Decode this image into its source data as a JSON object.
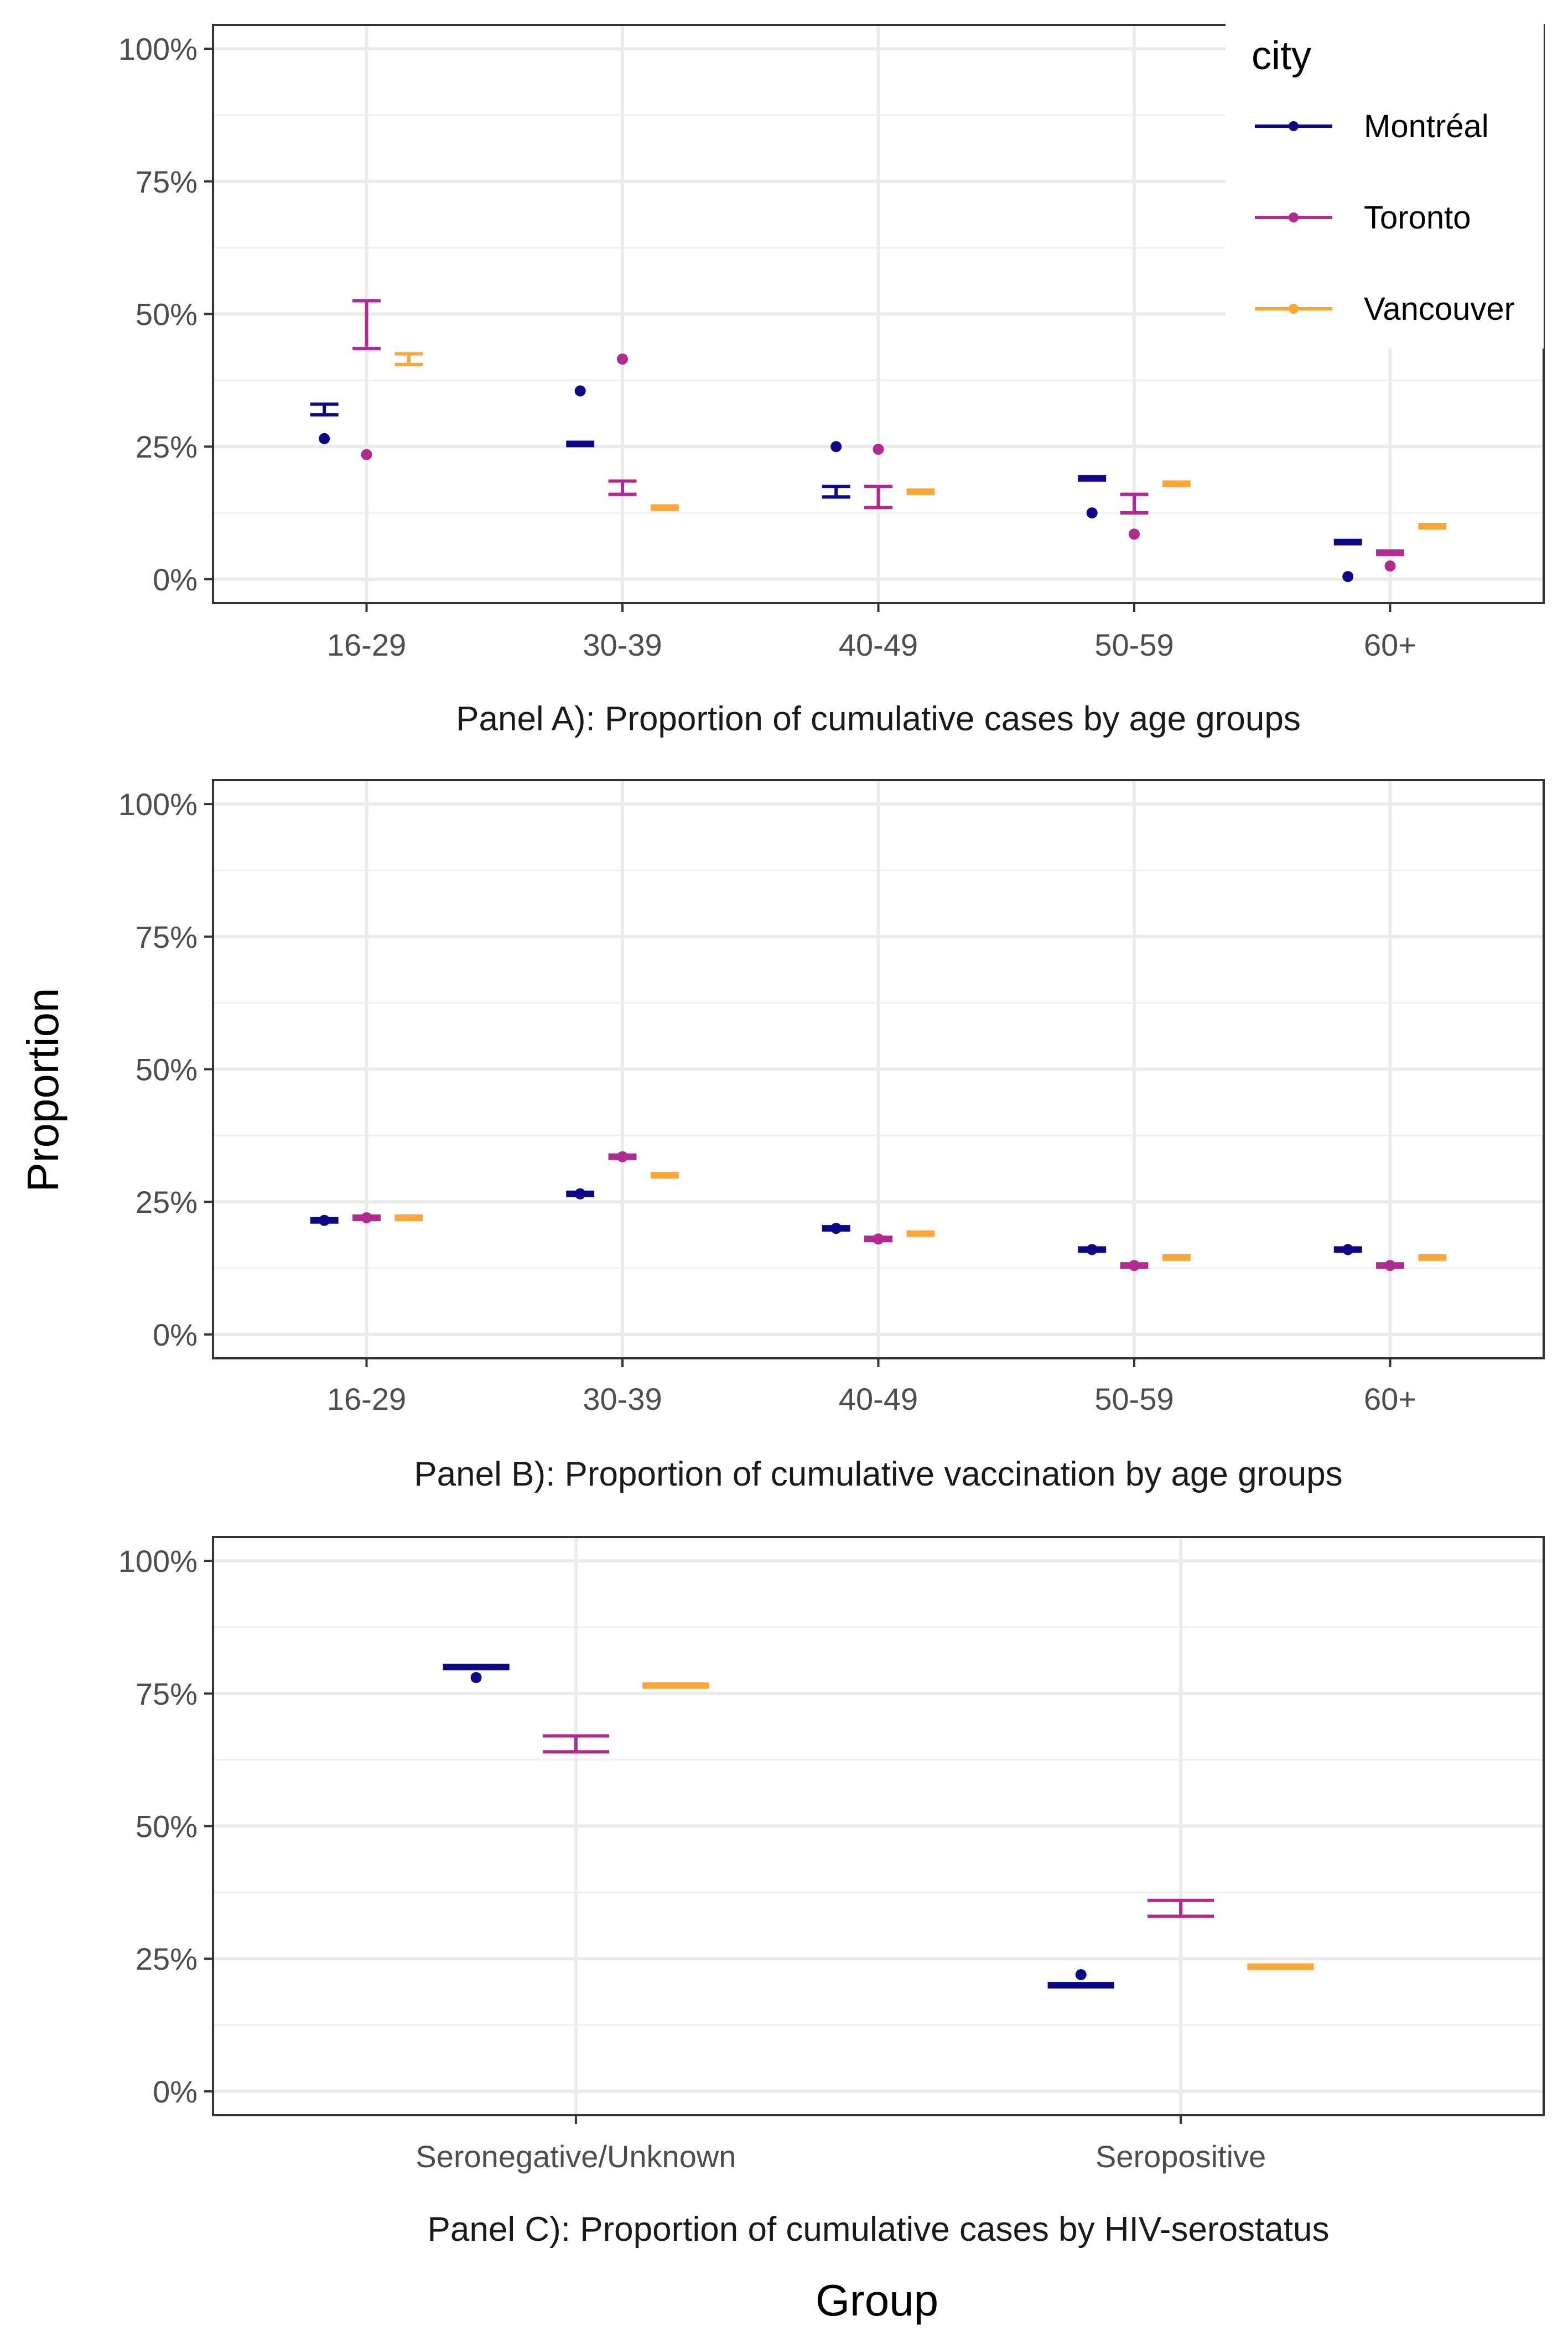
{
  "y_axis_title": "Proportion",
  "x_axis_title": "Group",
  "legend": {
    "title": "city",
    "entries": [
      "Montréal",
      "Toronto",
      "Vancouver"
    ]
  },
  "colors": {
    "Montréal": "#0d0887",
    "Toronto": "#b12a90",
    "Vancouver": "#fca636"
  },
  "chart_data": [
    {
      "type": "scatter",
      "caption": "Panel A): Proportion of cumulative cases by age groups",
      "categories": [
        "16-29",
        "30-39",
        "40-49",
        "50-59",
        "60+"
      ],
      "y_ticks": [
        "0%",
        "25%",
        "50%",
        "75%",
        "100%"
      ],
      "ylim": [
        0,
        1
      ],
      "series": [
        {
          "name": "Montréal",
          "observed": [
            0.265,
            0.355,
            0.25,
            0.125,
            0.005
          ],
          "estimate": [
            0.32,
            0.255,
            0.165,
            0.19,
            0.07
          ],
          "lower": [
            0.31,
            0.25,
            0.155,
            0.185,
            0.065
          ],
          "upper": [
            0.33,
            0.26,
            0.175,
            0.195,
            0.075
          ]
        },
        {
          "name": "Toronto",
          "observed": [
            0.235,
            0.415,
            0.245,
            0.085,
            0.025
          ],
          "estimate": [
            0.48,
            0.17,
            0.155,
            0.14,
            0.05
          ],
          "lower": [
            0.435,
            0.16,
            0.135,
            0.125,
            0.045
          ],
          "upper": [
            0.525,
            0.185,
            0.175,
            0.16,
            0.055
          ]
        },
        {
          "name": "Vancouver",
          "observed": [
            null,
            null,
            null,
            null,
            null
          ],
          "estimate": [
            0.415,
            0.135,
            0.165,
            0.18,
            0.1
          ],
          "lower": [
            0.405,
            0.13,
            0.16,
            0.175,
            0.095
          ],
          "upper": [
            0.425,
            0.14,
            0.17,
            0.185,
            0.105
          ]
        }
      ]
    },
    {
      "type": "scatter",
      "caption": "Panel B): Proportion of cumulative vaccination by age groups",
      "categories": [
        "16-29",
        "30-39",
        "40-49",
        "50-59",
        "60+"
      ],
      "y_ticks": [
        "0%",
        "25%",
        "50%",
        "75%",
        "100%"
      ],
      "ylim": [
        0,
        1
      ],
      "series": [
        {
          "name": "Montréal",
          "observed": [
            0.215,
            0.265,
            0.2,
            0.16,
            0.16
          ],
          "estimate": [
            0.215,
            0.265,
            0.2,
            0.16,
            0.16
          ],
          "lower": [
            0.215,
            0.265,
            0.2,
            0.16,
            0.16
          ],
          "upper": [
            0.215,
            0.265,
            0.2,
            0.16,
            0.16
          ]
        },
        {
          "name": "Toronto",
          "observed": [
            0.22,
            0.335,
            0.18,
            0.13,
            0.13
          ],
          "estimate": [
            0.22,
            0.335,
            0.18,
            0.13,
            0.13
          ],
          "lower": [
            0.22,
            0.335,
            0.18,
            0.13,
            0.13
          ],
          "upper": [
            0.22,
            0.335,
            0.18,
            0.13,
            0.13
          ]
        },
        {
          "name": "Vancouver",
          "observed": [
            null,
            null,
            null,
            null,
            null
          ],
          "estimate": [
            0.22,
            0.3,
            0.19,
            0.145,
            0.145
          ],
          "lower": [
            0.22,
            0.3,
            0.19,
            0.145,
            0.145
          ],
          "upper": [
            0.22,
            0.3,
            0.19,
            0.145,
            0.145
          ]
        }
      ]
    },
    {
      "type": "scatter",
      "caption": "Panel C): Proportion of cumulative cases by HIV-serostatus",
      "categories": [
        "Seronegative/Unknown",
        "Seropositive"
      ],
      "y_ticks": [
        "0%",
        "25%",
        "50%",
        "75%",
        "100%"
      ],
      "ylim": [
        0,
        1
      ],
      "series": [
        {
          "name": "Montréal",
          "observed": [
            0.78,
            0.22
          ],
          "estimate": [
            0.8,
            0.2
          ],
          "lower": [
            0.8,
            0.2
          ],
          "upper": [
            0.8,
            0.2
          ]
        },
        {
          "name": "Toronto",
          "observed": [
            null,
            null
          ],
          "estimate": [
            0.655,
            0.345
          ],
          "lower": [
            0.64,
            0.33
          ],
          "upper": [
            0.67,
            0.36
          ]
        },
        {
          "name": "Vancouver",
          "observed": [
            null,
            null
          ],
          "estimate": [
            0.765,
            0.235
          ],
          "lower": [
            0.765,
            0.235
          ],
          "upper": [
            0.765,
            0.235
          ]
        }
      ]
    }
  ]
}
